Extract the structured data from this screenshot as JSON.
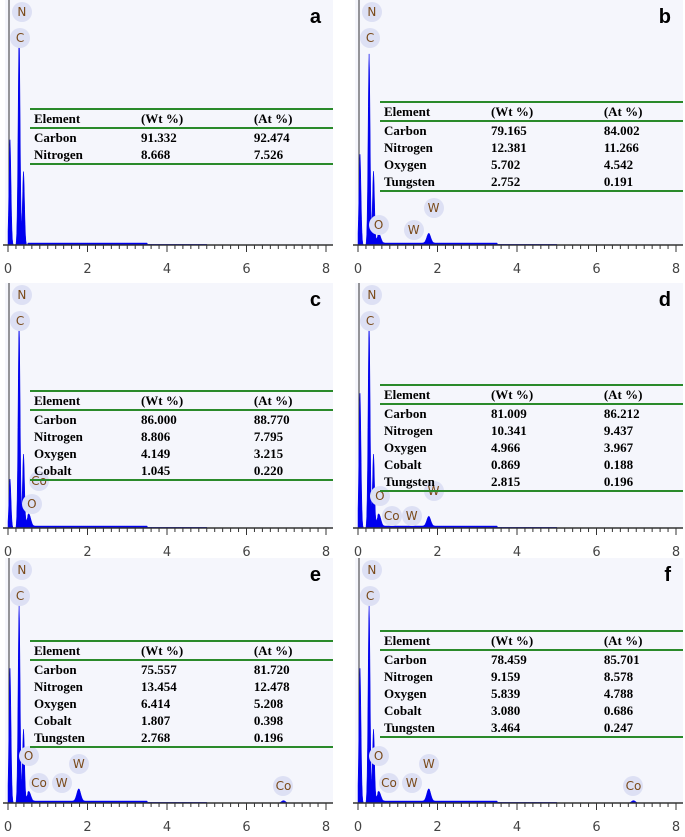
{
  "chart_data": [
    {
      "id": "a",
      "type": "line",
      "xlim": [
        0,
        8
      ],
      "xticks": [
        "0",
        "2",
        "4",
        "6",
        "8"
      ],
      "xlabel": "",
      "ylabel": "",
      "peaks": [
        {
          "energy": 0.05,
          "height": 0.43
        },
        {
          "energy": 0.28,
          "height": 0.86
        },
        {
          "energy": 0.39,
          "height": 0.3
        }
      ],
      "peak_labels": [
        {
          "text": "N",
          "energy": 0.39,
          "height": 0.95
        },
        {
          "text": "C",
          "energy": 0.28,
          "height": 0.84
        }
      ],
      "table": {
        "headers": [
          "Element",
          "(Wt %)",
          "(At %)"
        ],
        "rows": [
          [
            "Carbon",
            "91.332",
            "92.474"
          ],
          [
            "Nitrogen",
            "8.668",
            "7.526"
          ]
        ]
      }
    },
    {
      "id": "b",
      "type": "line",
      "xlim": [
        0,
        8
      ],
      "xticks": [
        "0",
        "2",
        "4",
        "6",
        "8"
      ],
      "xlabel": "",
      "ylabel": "",
      "peaks": [
        {
          "energy": 0.05,
          "height": 0.37
        },
        {
          "energy": 0.28,
          "height": 0.78
        },
        {
          "energy": 0.39,
          "height": 0.3
        },
        {
          "energy": 0.52,
          "height": 0.04
        },
        {
          "energy": 1.78,
          "height": 0.04
        }
      ],
      "peak_labels": [
        {
          "text": "N",
          "energy": 0.39,
          "height": 0.95
        },
        {
          "text": "C",
          "energy": 0.28,
          "height": 0.84
        },
        {
          "text": "O",
          "energy": 0.52,
          "height": 0.08
        },
        {
          "text": "W",
          "energy": 1.4,
          "height": 0.06
        },
        {
          "text": "W",
          "energy": 1.9,
          "height": 0.15
        }
      ],
      "table": {
        "headers": [
          "Element",
          "(Wt %)",
          "(At %)"
        ],
        "rows": [
          [
            "Carbon",
            "79.165",
            "84.002"
          ],
          [
            "Nitrogen",
            "12.381",
            "11.266"
          ],
          [
            "Oxygen",
            "5.702",
            "4.542"
          ],
          [
            "Tungsten",
            "2.752",
            "0.191"
          ]
        ]
      }
    },
    {
      "id": "c",
      "type": "line",
      "xlim": [
        0,
        8
      ],
      "xticks": [
        "0",
        "2",
        "4",
        "6",
        "8"
      ],
      "xlabel": "",
      "ylabel": "",
      "peaks": [
        {
          "energy": 0.05,
          "height": 0.2
        },
        {
          "energy": 0.28,
          "height": 0.84
        },
        {
          "energy": 0.39,
          "height": 0.3
        },
        {
          "energy": 0.52,
          "height": 0.05
        }
      ],
      "peak_labels": [
        {
          "text": "N",
          "energy": 0.39,
          "height": 0.95
        },
        {
          "text": "C",
          "energy": 0.28,
          "height": 0.84
        },
        {
          "text": "Co",
          "energy": 0.78,
          "height": 0.19
        },
        {
          "text": "O",
          "energy": 0.6,
          "height": 0.1
        }
      ],
      "table": {
        "headers": [
          "Element",
          "(Wt %)",
          "(At %)"
        ],
        "rows": [
          [
            "Carbon",
            "86.000",
            "88.770"
          ],
          [
            "Nitrogen",
            "8.806",
            "7.795"
          ],
          [
            "Oxygen",
            "4.149",
            "3.215"
          ],
          [
            "Cobalt",
            "1.045",
            "0.220"
          ]
        ]
      }
    },
    {
      "id": "d",
      "type": "line",
      "xlim": [
        0,
        8
      ],
      "xticks": [
        "0",
        "2",
        "4",
        "6",
        "8"
      ],
      "xlabel": "",
      "ylabel": "",
      "peaks": [
        {
          "energy": 0.05,
          "height": 0.55
        },
        {
          "energy": 0.28,
          "height": 0.84
        },
        {
          "energy": 0.39,
          "height": 0.3
        },
        {
          "energy": 0.52,
          "height": 0.05
        },
        {
          "energy": 1.78,
          "height": 0.04
        }
      ],
      "peak_labels": [
        {
          "text": "N",
          "energy": 0.39,
          "height": 0.95
        },
        {
          "text": "C",
          "energy": 0.28,
          "height": 0.84
        },
        {
          "text": "O",
          "energy": 0.55,
          "height": 0.13
        },
        {
          "text": "Co",
          "energy": 0.85,
          "height": 0.05
        },
        {
          "text": "W",
          "energy": 1.35,
          "height": 0.05
        },
        {
          "text": "W",
          "energy": 1.9,
          "height": 0.15
        }
      ],
      "table": {
        "headers": [
          "Element",
          "(Wt %)",
          "(At %)"
        ],
        "rows": [
          [
            "Carbon",
            "81.009",
            "86.212"
          ],
          [
            "Nitrogen",
            "10.341",
            "9.437"
          ],
          [
            "Oxygen",
            "4.966",
            "3.967"
          ],
          [
            "Cobalt",
            "0.869",
            "0.188"
          ],
          [
            "Tungsten",
            "2.815",
            "0.196"
          ]
        ]
      }
    },
    {
      "id": "e",
      "type": "line",
      "xlim": [
        0,
        8
      ],
      "xticks": [
        "0",
        "2",
        "4",
        "6",
        "8"
      ],
      "xlabel": "",
      "ylabel": "",
      "peaks": [
        {
          "energy": 0.05,
          "height": 0.55
        },
        {
          "energy": 0.28,
          "height": 0.81
        },
        {
          "energy": 0.39,
          "height": 0.3
        },
        {
          "energy": 0.52,
          "height": 0.04
        },
        {
          "energy": 1.78,
          "height": 0.05
        },
        {
          "energy": 6.93,
          "height": 0.01
        }
      ],
      "peak_labels": [
        {
          "text": "N",
          "energy": 0.39,
          "height": 0.95
        },
        {
          "text": "C",
          "energy": 0.28,
          "height": 0.84
        },
        {
          "text": "O",
          "energy": 0.52,
          "height": 0.19
        },
        {
          "text": "Co",
          "energy": 0.78,
          "height": 0.08
        },
        {
          "text": "W",
          "energy": 1.35,
          "height": 0.08
        },
        {
          "text": "W",
          "energy": 1.78,
          "height": 0.16
        },
        {
          "text": "Co",
          "energy": 6.93,
          "height": 0.07
        }
      ],
      "table": {
        "headers": [
          "Element",
          "(Wt %)",
          "(At %)"
        ],
        "rows": [
          [
            "Carbon",
            "75.557",
            "81.720"
          ],
          [
            "Nitrogen",
            "13.454",
            "12.478"
          ],
          [
            "Oxygen",
            "6.414",
            "5.208"
          ],
          [
            "Cobalt",
            "1.807",
            "0.398"
          ],
          [
            "Tungsten",
            "2.768",
            "0.196"
          ]
        ]
      }
    },
    {
      "id": "f",
      "type": "line",
      "xlim": [
        0,
        8
      ],
      "xticks": [
        "0",
        "2",
        "4",
        "6",
        "8"
      ],
      "xlabel": "",
      "ylabel": "",
      "peaks": [
        {
          "energy": 0.05,
          "height": 0.55
        },
        {
          "energy": 0.28,
          "height": 0.81
        },
        {
          "energy": 0.39,
          "height": 0.3
        },
        {
          "energy": 0.52,
          "height": 0.04
        },
        {
          "energy": 1.78,
          "height": 0.05
        },
        {
          "energy": 6.93,
          "height": 0.01
        }
      ],
      "peak_labels": [
        {
          "text": "N",
          "energy": 0.39,
          "height": 0.95
        },
        {
          "text": "C",
          "energy": 0.28,
          "height": 0.84
        },
        {
          "text": "O",
          "energy": 0.52,
          "height": 0.19
        },
        {
          "text": "Co",
          "energy": 0.78,
          "height": 0.08
        },
        {
          "text": "W",
          "energy": 1.35,
          "height": 0.08
        },
        {
          "text": "W",
          "energy": 1.78,
          "height": 0.16
        },
        {
          "text": "Co",
          "energy": 6.93,
          "height": 0.07
        }
      ],
      "table": {
        "headers": [
          "Element",
          "(Wt %)",
          "(At %)"
        ],
        "rows": [
          [
            "Carbon",
            "78.459",
            "85.701"
          ],
          [
            "Nitrogen",
            "9.159",
            "8.578"
          ],
          [
            "Oxygen",
            "5.839",
            "4.788"
          ],
          [
            "Cobalt",
            "3.080",
            "0.686"
          ],
          [
            "Tungsten",
            "3.464",
            "0.247"
          ]
        ]
      }
    }
  ],
  "colors": {
    "spectrum": "#0000ee",
    "table_rule": "#2a8a2a",
    "label_bg": "#dde0f4"
  }
}
